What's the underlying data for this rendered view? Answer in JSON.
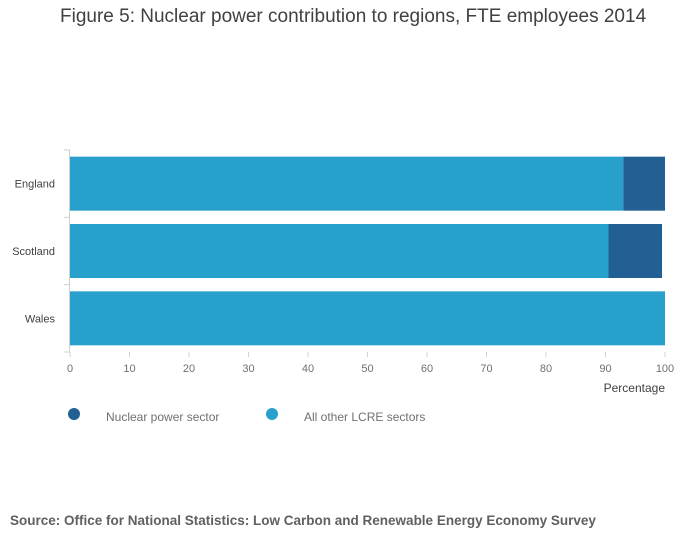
{
  "title": "Figure 5: Nuclear power contribution to regions, FTE employees 2014",
  "source": "Source: Office for National Statistics: Low Carbon and Renewable Energy Economy Survey",
  "colors": {
    "nuclear": "#225f92",
    "other": "#27a0cc"
  },
  "chart_data": {
    "type": "bar",
    "orientation": "horizontal",
    "stacked": true,
    "title": "Figure 5: Nuclear power contribution to regions, FTE employees 2014",
    "xlabel": "Percentage",
    "ylabel": "",
    "categories": [
      "England",
      "Scotland",
      "Wales"
    ],
    "series": [
      {
        "name": "All other LCRE sectors",
        "values": [
          93,
          90.5,
          100
        ]
      },
      {
        "name": "Nuclear power sector",
        "values": [
          7,
          9,
          0
        ]
      }
    ],
    "xlim": [
      0,
      100
    ],
    "xticks": [
      0,
      10,
      20,
      30,
      40,
      50,
      60,
      70,
      80,
      90,
      100
    ],
    "legend": {
      "position": "bottom-left",
      "items": [
        "Nuclear power sector",
        "All other LCRE sectors"
      ]
    },
    "grid": false
  }
}
